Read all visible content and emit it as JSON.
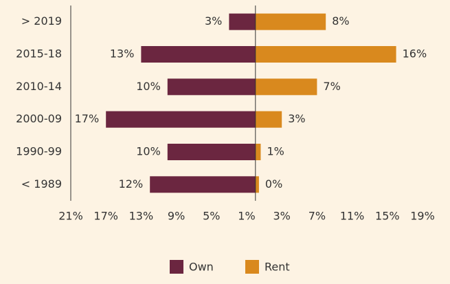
{
  "chart_data": {
    "type": "diverging-bar",
    "categories": [
      "> 2019",
      "2015-18",
      "2010-14",
      "2000-09",
      "1990-99",
      "< 1989"
    ],
    "series": [
      {
        "name": "Own",
        "color": "#6b2640",
        "side": "left",
        "values": [
          3,
          13,
          10,
          17,
          10,
          12
        ],
        "value_labels": [
          "3%",
          "13%",
          "10%",
          "17%",
          "10%",
          "12%"
        ]
      },
      {
        "name": "Rent",
        "color": "#d9891e",
        "side": "right",
        "values": [
          8,
          16,
          7,
          3,
          0.6,
          0.4
        ],
        "value_labels": [
          "8%",
          "16%",
          "7%",
          "3%",
          "1%",
          "0%"
        ]
      }
    ],
    "xlim": [
      -21,
      19
    ],
    "xticks": [
      {
        "value": -21,
        "label": "21%"
      },
      {
        "value": -17,
        "label": "17%"
      },
      {
        "value": -13,
        "label": "13%"
      },
      {
        "value": -9,
        "label": "9%"
      },
      {
        "value": -5,
        "label": "5%"
      },
      {
        "value": -1,
        "label": "1%"
      },
      {
        "value": 3,
        "label": "3%"
      },
      {
        "value": 7,
        "label": "7%"
      },
      {
        "value": 11,
        "label": "11%"
      },
      {
        "value": 15,
        "label": "15%"
      },
      {
        "value": 19,
        "label": "19%"
      }
    ],
    "legend": "bottom"
  }
}
